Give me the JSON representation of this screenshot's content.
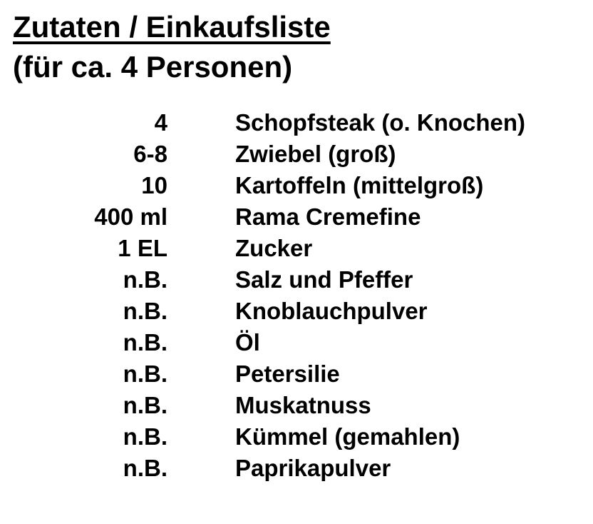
{
  "page": {
    "title": "Zutaten / Einkaufsliste",
    "subtitle": "(für ca. 4 Personen)",
    "text_color": "#000000",
    "background_color": "#ffffff"
  },
  "list": {
    "items": [
      {
        "qty": "4",
        "name": "Schopfsteak (o. Knochen)"
      },
      {
        "qty": "6-8",
        "name": "Zwiebel (groß)"
      },
      {
        "qty": "10",
        "name": "Kartoffeln (mittelgroß)"
      },
      {
        "qty": "400 ml",
        "name": "Rama Cremefine"
      },
      {
        "qty": "1 EL",
        "name": "Zucker"
      },
      {
        "qty": "n.B.",
        "name": "Salz und Pfeffer"
      },
      {
        "qty": "n.B.",
        "name": "Knoblauchpulver"
      },
      {
        "qty": "n.B.",
        "name": "Öl"
      },
      {
        "qty": "n.B.",
        "name": "Petersilie"
      },
      {
        "qty": "n.B.",
        "name": "Muskatnuss"
      },
      {
        "qty": "n.B.",
        "name": "Kümmel (gemahlen)"
      },
      {
        "qty": "n.B.",
        "name": "Paprikapulver"
      }
    ]
  }
}
